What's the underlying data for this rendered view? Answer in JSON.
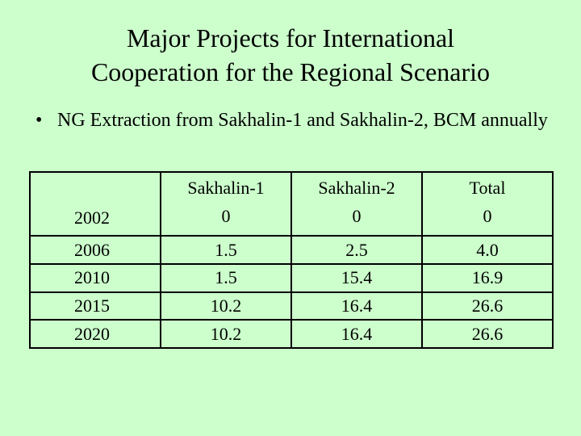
{
  "slide": {
    "title_line1": "Major Projects for International",
    "title_line2": "Cooperation for the Regional Scenario",
    "bullet_symbol": "•",
    "bullet_text": "NG Extraction from Sakhalin-1 and Sakhalin-2, BCM annually"
  },
  "table": {
    "headers": [
      "",
      "Sakhalin-1",
      "Sakhalin-2",
      "Total"
    ],
    "rows": [
      [
        "2002",
        "0",
        "0",
        "0"
      ],
      [
        "2006",
        "1.5",
        "2.5",
        "4.0"
      ],
      [
        "2010",
        "1.5",
        "15.4",
        "16.9"
      ],
      [
        "2015",
        "10.2",
        "16.4",
        "26.6"
      ],
      [
        "2020",
        "10.2",
        "16.4",
        "26.6"
      ]
    ]
  }
}
